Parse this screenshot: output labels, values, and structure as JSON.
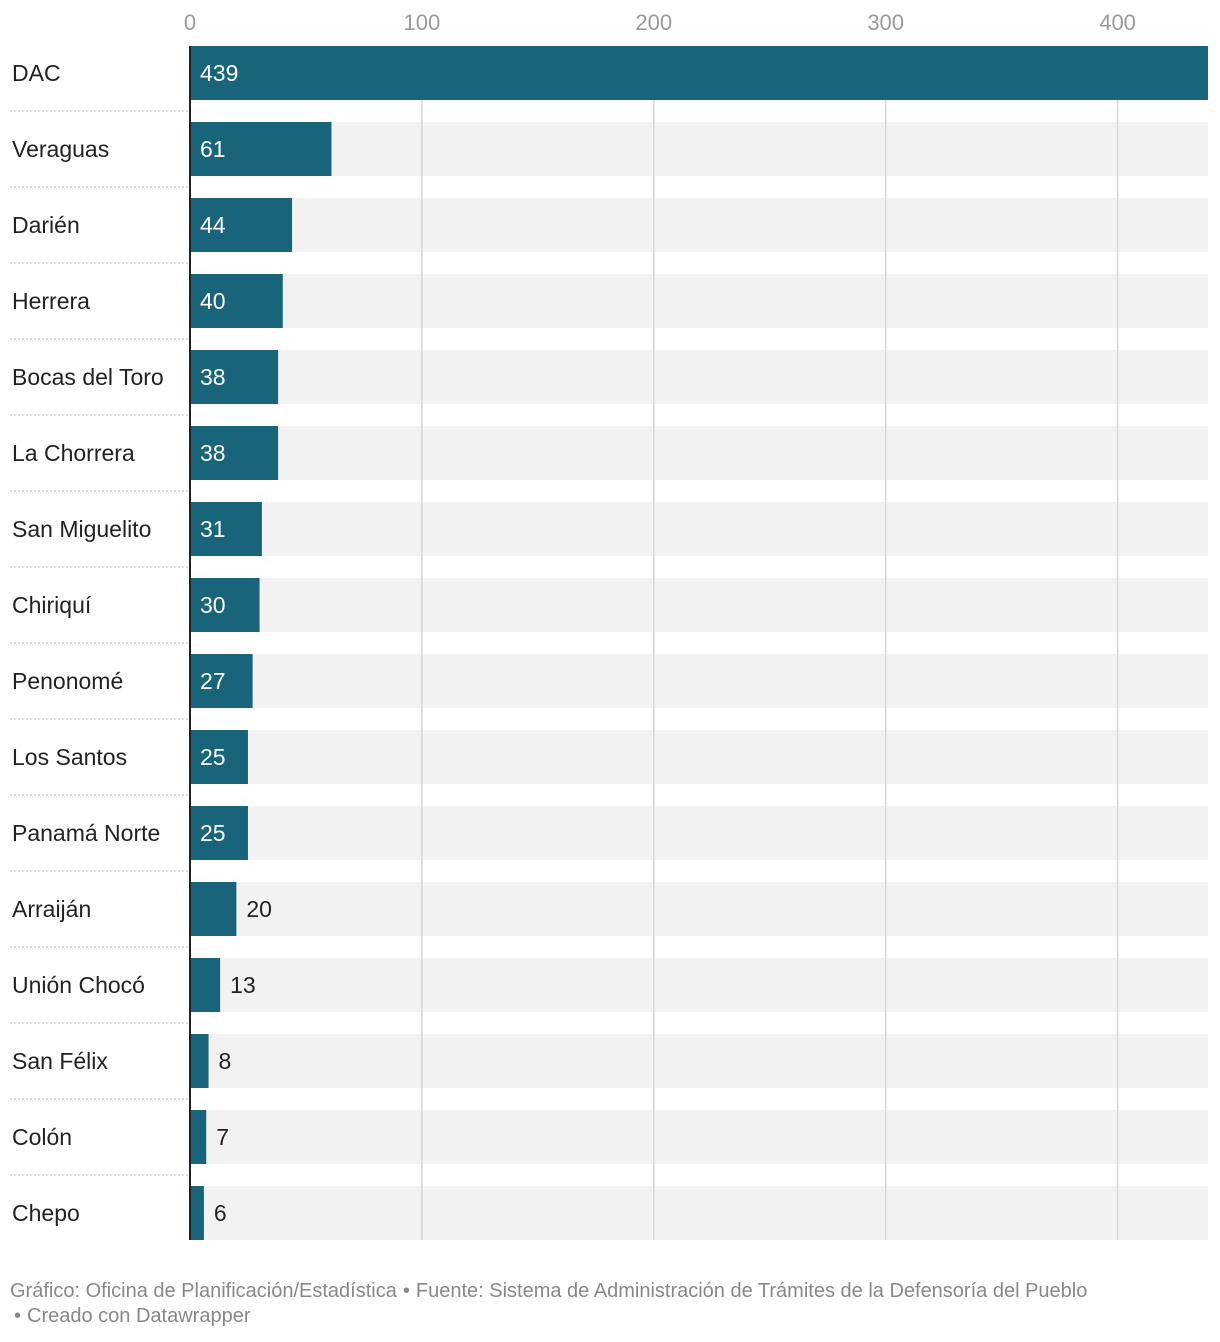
{
  "chart_data": {
    "type": "bar",
    "orientation": "horizontal",
    "categories": [
      "DAC",
      "Veraguas",
      "Darién",
      "Herrera",
      "Bocas del Toro",
      "La Chorrera",
      "San Miguelito",
      "Chiriquí",
      "Penonomé",
      "Los Santos",
      "Panamá Norte",
      "Arraiján",
      "Unión Chocó",
      "San Félix",
      "Colón",
      "Chepo"
    ],
    "values": [
      439,
      61,
      44,
      40,
      38,
      38,
      31,
      30,
      27,
      25,
      25,
      20,
      13,
      8,
      7,
      6
    ],
    "xlim": [
      0,
      439
    ],
    "xticks": [
      0,
      100,
      200,
      300,
      400
    ],
    "grid": true,
    "bar_color": "#17647b",
    "track_color": "#f2f2f2"
  },
  "footer": {
    "grafico": "Gráfico: Oficina de Planificación/Estadística",
    "fuente": "Fuente: Sistema de Administración de Trámites de la Defensoría del Pueblo",
    "creado": "Creado con Datawrapper",
    "separator": "•"
  }
}
